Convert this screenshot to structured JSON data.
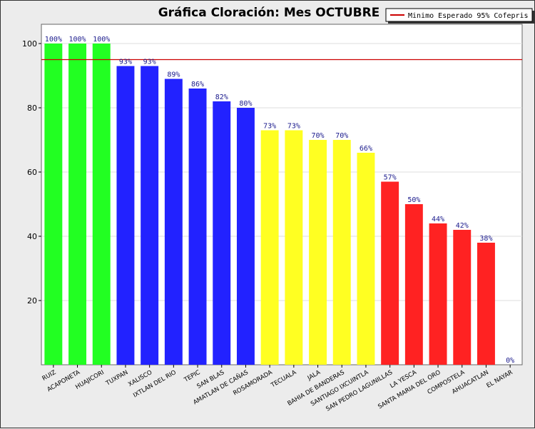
{
  "chart_data": {
    "type": "bar",
    "title": "Gráfica Cloración: Mes OCTUBRE",
    "xlabel": "",
    "ylabel": "",
    "ylim": [
      0,
      106
    ],
    "yticks": [
      20,
      40,
      60,
      80,
      100
    ],
    "grid": true,
    "categories": [
      "RUIZ",
      "ACAPONETA",
      "HUAJICORI",
      "TUXPAN",
      "XALISCO",
      "IXTLAN DEL RIO",
      "TEPIC",
      "SAN BLAS",
      "AMATLAN DE CAÑAS",
      "ROSAMORADA",
      "TECUALA",
      "JALA",
      "BAHIA DE BANDERAS",
      "SANTIAGO IXCUINTLA",
      "SAN PEDRO LAGUNILLAS",
      "LA YESCA",
      "SANTA MARIA DEL ORO",
      "COMPOSTELA",
      "AHUACATLAN",
      "EL NAYAR"
    ],
    "values": [
      100,
      100,
      100,
      93,
      93,
      89,
      86,
      82,
      80,
      73,
      73,
      70,
      70,
      66,
      57,
      50,
      44,
      42,
      38,
      0
    ],
    "labels": [
      "100%",
      "100%",
      "100%",
      "93%",
      "93%",
      "89%",
      "86%",
      "82%",
      "80%",
      "73%",
      "73%",
      "70%",
      "70%",
      "66%",
      "57%",
      "50%",
      "44%",
      "42%",
      "38%",
      "0%"
    ],
    "bar_colors": [
      "#22ff22",
      "#22ff22",
      "#22ff22",
      "#2222ff",
      "#2222ff",
      "#2222ff",
      "#2222ff",
      "#2222ff",
      "#2222ff",
      "#ffff22",
      "#ffff22",
      "#ffff22",
      "#ffff22",
      "#ffff22",
      "#ff2222",
      "#ff2222",
      "#ff2222",
      "#ff2222",
      "#ff2222",
      "#ff2222"
    ],
    "reference_line": {
      "value": 95,
      "color": "#cc0000",
      "label": "Minimo Esperado 95% Cofepris"
    },
    "legend": {
      "position": "top-right",
      "entries": [
        "Minimo Esperado 95% Cofepris"
      ]
    }
  }
}
